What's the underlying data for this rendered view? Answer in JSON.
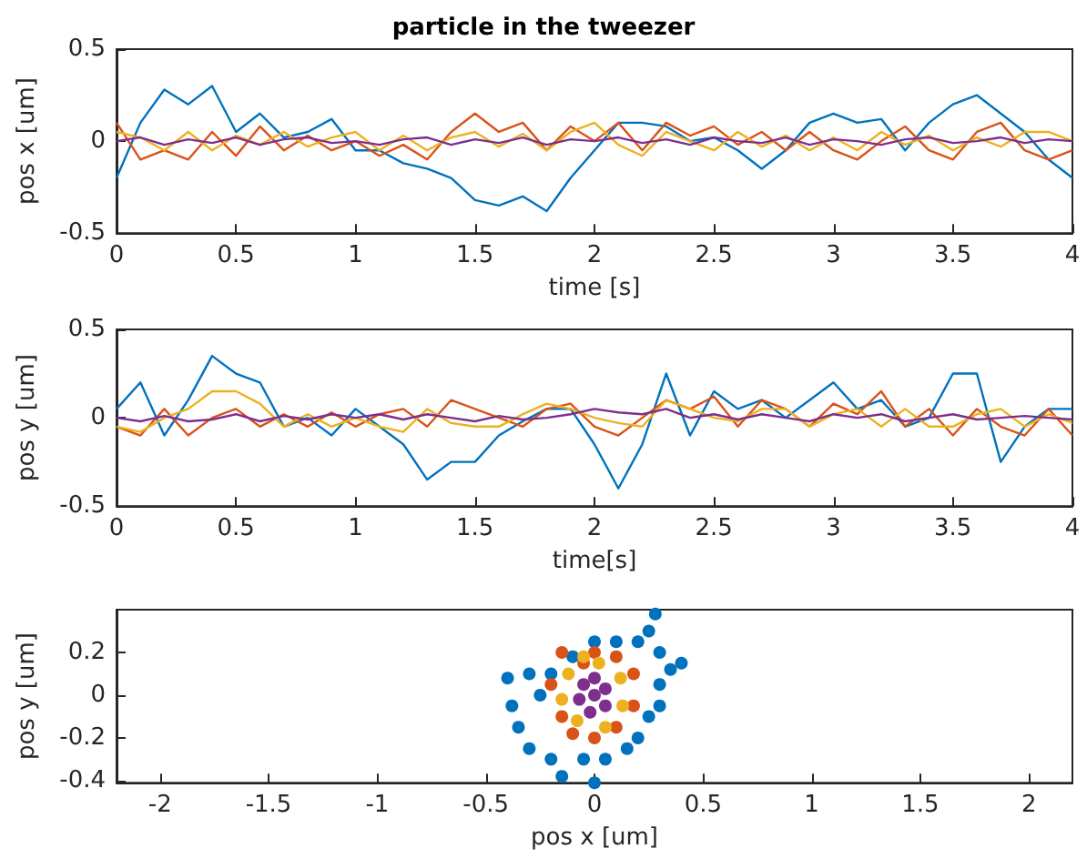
{
  "chart_data": [
    {
      "type": "line",
      "title": "particle in the tweezer",
      "xlabel": "time [s]",
      "ylabel": "pos x [um]",
      "marker": "none",
      "line_style": "solid",
      "x": [
        0,
        0.1,
        0.2,
        0.3,
        0.4,
        0.5,
        0.6,
        0.7,
        0.8,
        0.9,
        1,
        1.1,
        1.2,
        1.3,
        1.4,
        1.5,
        1.6,
        1.7,
        1.8,
        1.9,
        2,
        2.1,
        2.2,
        2.3,
        2.4,
        2.5,
        2.6,
        2.7,
        2.8,
        2.9,
        3,
        3.1,
        3.2,
        3.3,
        3.4,
        3.5,
        3.6,
        3.7,
        3.8,
        3.9,
        4
      ],
      "xlim": [
        0,
        4
      ],
      "xticks": [
        0,
        0.5,
        1,
        1.5,
        2,
        2.5,
        3,
        3.5,
        4
      ],
      "ylim": [
        -0.5,
        0.5
      ],
      "yticks": [
        -0.5,
        0,
        0.5
      ],
      "series": [
        {
          "color": "#0072bd",
          "values": [
            -0.2,
            0.1,
            0.28,
            0.2,
            0.3,
            0.05,
            0.15,
            0.02,
            0.05,
            0.12,
            -0.05,
            -0.05,
            -0.12,
            -0.15,
            -0.2,
            -0.32,
            -0.35,
            -0.3,
            -0.38,
            -0.2,
            -0.05,
            0.1,
            0.1,
            0.08,
            0,
            0.02,
            -0.05,
            -0.15,
            -0.05,
            0.1,
            0.15,
            0.1,
            0.12,
            -0.05,
            0.1,
            0.2,
            0.25,
            0.15,
            0.05,
            -0.1,
            -0.2
          ]
        },
        {
          "color": "#d95319",
          "values": [
            0.1,
            -0.1,
            -0.05,
            -0.1,
            0.05,
            -0.08,
            0.08,
            -0.05,
            0.03,
            -0.05,
            0,
            -0.08,
            -0.02,
            -0.1,
            0.05,
            0.15,
            0.05,
            0.1,
            -0.05,
            0.08,
            0,
            0.1,
            -0.05,
            0.1,
            0.03,
            0.08,
            -0.02,
            0.05,
            -0.05,
            0.05,
            -0.05,
            -0.1,
            0,
            0.08,
            -0.05,
            -0.1,
            0.05,
            0.1,
            -0.05,
            -0.1,
            -0.05
          ]
        },
        {
          "color": "#edb120",
          "values": [
            0.05,
            0.02,
            -0.05,
            0.05,
            -0.05,
            0.03,
            -0.02,
            0.05,
            -0.03,
            0.02,
            0.05,
            -0.05,
            0.03,
            -0.05,
            0.02,
            0.05,
            -0.03,
            0.04,
            -0.05,
            0.05,
            0.1,
            -0.02,
            -0.08,
            0.05,
            0,
            -0.05,
            0.05,
            -0.03,
            0.03,
            -0.05,
            0.02,
            -0.05,
            0.05,
            -0.02,
            0.03,
            -0.05,
            0.02,
            -0.03,
            0.05,
            0.05,
            0
          ]
        },
        {
          "color": "#7e2f8e",
          "values": [
            0,
            0.02,
            -0.02,
            0.01,
            -0.01,
            0.02,
            -0.02,
            0.01,
            0.02,
            -0.01,
            0,
            -0.02,
            0.01,
            0.02,
            -0.02,
            0.01,
            -0.01,
            0.02,
            -0.02,
            0.01,
            0,
            0.02,
            -0.01,
            0.01,
            -0.02,
            0.02,
            0,
            -0.01,
            0.02,
            -0.02,
            0.01,
            0,
            -0.02,
            0.01,
            0.02,
            -0.01,
            0,
            0.02,
            -0.01,
            0.01,
            0
          ]
        }
      ]
    },
    {
      "type": "line",
      "xlabel": "time[s]",
      "ylabel": "pos y [um]",
      "marker": "none",
      "line_style": "solid",
      "x": [
        0,
        0.1,
        0.2,
        0.3,
        0.4,
        0.5,
        0.6,
        0.7,
        0.8,
        0.9,
        1,
        1.1,
        1.2,
        1.3,
        1.4,
        1.5,
        1.6,
        1.7,
        1.8,
        1.9,
        2,
        2.1,
        2.2,
        2.3,
        2.4,
        2.5,
        2.6,
        2.7,
        2.8,
        2.9,
        3,
        3.1,
        3.2,
        3.3,
        3.4,
        3.5,
        3.6,
        3.7,
        3.8,
        3.9,
        4
      ],
      "xlim": [
        0,
        4
      ],
      "xticks": [
        0,
        0.5,
        1,
        1.5,
        2,
        2.5,
        3,
        3.5,
        4
      ],
      "ylim": [
        -0.5,
        0.5
      ],
      "yticks": [
        -0.5,
        0,
        0.5
      ],
      "series": [
        {
          "color": "#0072bd",
          "values": [
            0.05,
            0.2,
            -0.1,
            0.1,
            0.35,
            0.25,
            0.2,
            -0.05,
            0,
            -0.1,
            0.05,
            -0.05,
            -0.15,
            -0.35,
            -0.25,
            -0.25,
            -0.1,
            -0.02,
            0.05,
            0.05,
            -0.15,
            -0.4,
            -0.15,
            0.25,
            -0.1,
            0.15,
            0.05,
            0.1,
            0,
            0.1,
            0.2,
            0.05,
            0.1,
            -0.05,
            0,
            0.25,
            0.25,
            -0.25,
            -0.05,
            0.05,
            0.05
          ]
        },
        {
          "color": "#d95319",
          "values": [
            -0.05,
            -0.1,
            0.05,
            -0.1,
            0,
            0.05,
            -0.05,
            0.02,
            -0.05,
            0.03,
            -0.05,
            0.02,
            0.05,
            -0.05,
            0.1,
            0.05,
            0,
            -0.05,
            0.05,
            0.08,
            -0.05,
            -0.1,
            0,
            0.1,
            0.05,
            0.12,
            -0.05,
            0.1,
            0.05,
            -0.05,
            0.08,
            0.02,
            0.15,
            -0.05,
            0.05,
            -0.1,
            0.05,
            -0.05,
            -0.1,
            0.05,
            -0.1
          ]
        },
        {
          "color": "#edb120",
          "values": [
            -0.05,
            -0.08,
            0,
            0.05,
            0.15,
            0.15,
            0.08,
            -0.05,
            0.02,
            -0.05,
            0,
            -0.05,
            -0.08,
            0.05,
            -0.03,
            -0.05,
            -0.05,
            0.02,
            0.08,
            0.05,
            0,
            -0.03,
            -0.05,
            0.1,
            0.05,
            0,
            -0.02,
            0.05,
            0.05,
            -0.05,
            0.02,
            0.05,
            -0.05,
            0.05,
            -0.05,
            -0.05,
            0.02,
            0.05,
            -0.05,
            0.02,
            -0.03
          ]
        },
        {
          "color": "#7e2f8e",
          "values": [
            0,
            -0.02,
            0.01,
            -0.02,
            -0.01,
            0.02,
            -0.02,
            0.01,
            -0.01,
            0.02,
            0,
            0.02,
            -0.01,
            0.02,
            0,
            -0.02,
            0.01,
            -0.01,
            0,
            0.02,
            0.05,
            0.03,
            0.02,
            0.05,
            0,
            0.02,
            -0.01,
            0.02,
            0,
            -0.02,
            0.02,
            0,
            0.02,
            -0.02,
            0,
            0.02,
            -0.01,
            0,
            0.01,
            0,
            -0.01
          ]
        }
      ]
    },
    {
      "type": "scatter",
      "xlabel": "pos x [um]",
      "ylabel": "pos y [um]",
      "marker": "circle",
      "xlim": [
        -2.2,
        2.2
      ],
      "xticks": [
        -2,
        -1.5,
        -1,
        -0.5,
        0,
        0.5,
        1,
        1.5,
        2
      ],
      "ylim": [
        -0.41,
        0.4
      ],
      "yticks": [
        -0.4,
        -0.2,
        0,
        0.2
      ],
      "series": [
        {
          "color": "#0072bd",
          "x": [
            -0.4,
            -0.38,
            -0.3,
            -0.35,
            -0.3,
            -0.2,
            -0.15,
            -0.05,
            0,
            0.05,
            0.15,
            0.2,
            0.25,
            0.3,
            0.3,
            0.35,
            0.4,
            0.3,
            0.25,
            0.28,
            0.2,
            0.1,
            0,
            -0.1,
            -0.2,
            -0.25
          ],
          "values": [
            0.08,
            -0.05,
            0.1,
            -0.15,
            -0.25,
            -0.3,
            -0.38,
            -0.3,
            -0.41,
            -0.3,
            -0.25,
            -0.2,
            -0.1,
            -0.05,
            0.05,
            0.12,
            0.15,
            0.2,
            0.3,
            0.38,
            0.25,
            0.25,
            0.25,
            0.18,
            0.1,
            0
          ]
        },
        {
          "color": "#d95319",
          "x": [
            -0.15,
            -0.2,
            -0.15,
            -0.1,
            0,
            0.1,
            0.18,
            0.18,
            0.1,
            0,
            -0.05
          ],
          "values": [
            0.2,
            0.05,
            -0.1,
            -0.18,
            -0.2,
            -0.15,
            -0.05,
            0.1,
            0.18,
            0.2,
            0.15
          ]
        },
        {
          "color": "#edb120",
          "x": [
            -0.12,
            -0.15,
            -0.08,
            0.05,
            0.13,
            0.12,
            0.02,
            -0.05
          ],
          "values": [
            0.1,
            -0.02,
            -0.12,
            -0.15,
            -0.05,
            0.08,
            0.15,
            0.18
          ]
        },
        {
          "color": "#7e2f8e",
          "x": [
            -0.05,
            0,
            0.05,
            0.05,
            -0.02,
            -0.07,
            0
          ],
          "values": [
            0.05,
            0.08,
            0.03,
            -0.05,
            -0.08,
            -0.02,
            0
          ]
        }
      ]
    }
  ]
}
